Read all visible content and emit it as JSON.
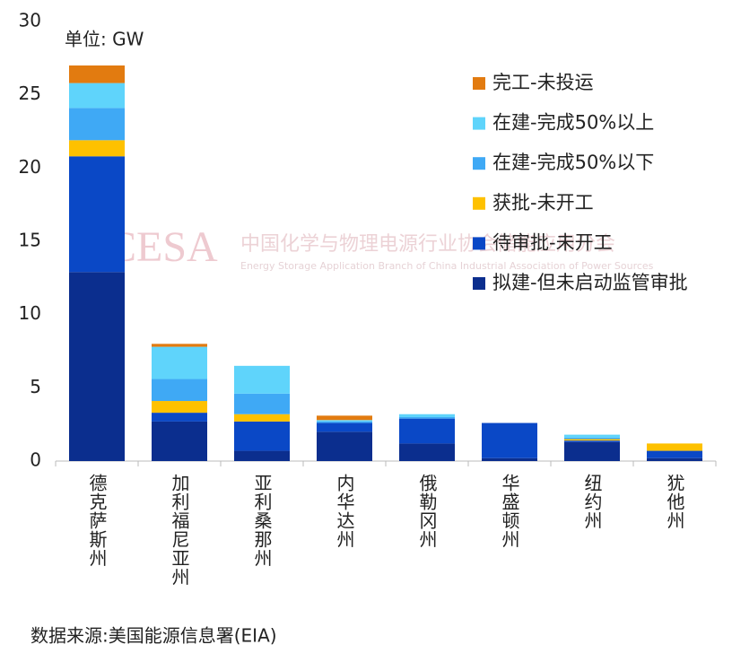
{
  "chart_data": {
    "type": "stacked_bar",
    "unit_label": "单位: GW",
    "source": "数据来源:美国能源信息署(EIA)",
    "watermark": [
      "CESA",
      "中国化学与物理电源行业协会储能应用分会",
      "Energy Storage Application Branch of China Industrial Association of Power Sources"
    ],
    "categories": [
      "德克萨斯州",
      "加利福尼亚州",
      "亚利桑那州",
      "内华达州",
      "俄勒冈州",
      "华盛顿州",
      "纽约州",
      "犹他州"
    ],
    "series": [
      {
        "name": "拟建-但未启动监管审批",
        "color": "#0b2e8e",
        "values": [
          12.9,
          2.7,
          0.7,
          2.0,
          1.2,
          0.2,
          1.3,
          0.2
        ]
      },
      {
        "name": "待审批-未开工",
        "color": "#0a48c6",
        "values": [
          7.9,
          0.6,
          2.0,
          0.6,
          1.7,
          2.4,
          0.1,
          0.5
        ]
      },
      {
        "name": "获批-未开工",
        "color": "#fec100",
        "values": [
          1.1,
          0.8,
          0.5,
          0,
          0,
          0,
          0.1,
          0.5
        ]
      },
      {
        "name": "在建-完成50%以下",
        "color": "#3fa9f5",
        "values": [
          2.2,
          1.5,
          1.4,
          0.1,
          0.1,
          0,
          0.1,
          0
        ]
      },
      {
        "name": "在建-完成50%以上",
        "color": "#5fd4fb",
        "values": [
          1.7,
          2.2,
          1.9,
          0.1,
          0.2,
          0,
          0.2,
          0
        ]
      },
      {
        "name": "完工-未投运",
        "color": "#e27b10",
        "values": [
          1.2,
          0.2,
          0,
          0.3,
          0,
          0,
          0,
          0
        ]
      }
    ],
    "ylim": [
      0,
      30
    ],
    "yticks": [
      0,
      5,
      10,
      15,
      20,
      25,
      30
    ],
    "grid": false
  }
}
